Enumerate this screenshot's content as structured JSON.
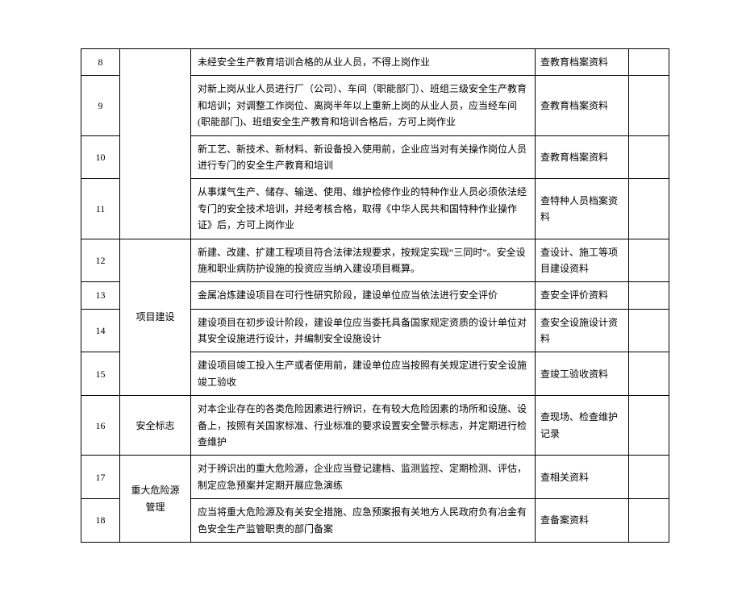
{
  "table": {
    "columns": {
      "num_width": 48,
      "cat_width": 88,
      "check_width": 116,
      "blank_width": 50
    },
    "text_color": "#000000",
    "border_color": "#000000",
    "background_color": "#ffffff",
    "font_size": 12,
    "rows": [
      {
        "num": "8",
        "desc": "未经安全生产教育培训合格的从业人员，不得上岗作业",
        "check": "查教育档案资料"
      },
      {
        "num": "9",
        "desc": "对新上岗从业人员进行厂（公司）、车间（职能部门）、班组三级安全生产教育和培训；对调整工作岗位、离岗半年以上重新上岗的从业人员，应当经车间(职能部门)、班组安全生产教育和培训合格后，方可上岗作业",
        "check": "查教育档案资料"
      },
      {
        "num": "10",
        "desc": "新工艺、新技术、新材料、新设备投入使用前，企业应当对有关操作岗位人员进行专门的安全生产教育和培训",
        "check": "查教育档案资料"
      },
      {
        "num": "11",
        "desc": "从事煤气生产、储存、输送、使用、维护检修作业的特种作业人员必须依法经专门的安全技术培训，并经考核合格，取得《中华人民共和国特种作业操作证》后，方可上岗作业",
        "check": "查特种人员档案资料"
      },
      {
        "num": "12",
        "desc": "新建、改建、扩建工程项目符合法律法规要求，按规定实现“三同时”。安全设施和职业病防护设施的投资应当纳入建设项目概算。",
        "check": "查设计、施工等项目建设资料"
      },
      {
        "num": "13",
        "desc": "金属冶炼建设项目在可行性研究阶段，建设单位应当依法进行安全评价",
        "check": "查安全评价资料"
      },
      {
        "num": "14",
        "desc": "建设项目在初步设计阶段，建设单位应当委托具备国家规定资质的设计单位对其安全设施进行设计，并编制安全设施设计",
        "check": "查安全设施设计资料"
      },
      {
        "num": "15",
        "desc": "建设项目竣工投入生产或者使用前，建设单位应当按照有关规定进行安全设施竣工验收",
        "check": "查竣工验收资料"
      },
      {
        "num": "16",
        "desc": "对本企业存在的各类危险因素进行辨识，在有较大危险因素的场所和设施、设备上，按照有关国家标准、行业标准的要求设置安全警示标志，并定期进行检查维护",
        "check": "查现场、检查维护记录"
      },
      {
        "num": "17",
        "desc": "对于辨识出的重大危险源，企业应当登记建档、监测监控、定期检测、评估，制定应急预案并定期开展应急演练",
        "check": "查相关资料"
      },
      {
        "num": "18",
        "desc": "应当将重大危险源及有关安全措施、应急预案报有关地方人民政府负有冶金有色安全生产监管职责的部门备案",
        "check": "查备案资料"
      }
    ],
    "categories": {
      "first_blank": {
        "rowspan": 4
      },
      "project": {
        "label": "项目建设",
        "rowspan": 4
      },
      "safety_sign": {
        "label": "安全标志",
        "rowspan": 1
      },
      "major_hazard": {
        "label": "重大危险源管理",
        "rowspan": 2
      }
    }
  }
}
